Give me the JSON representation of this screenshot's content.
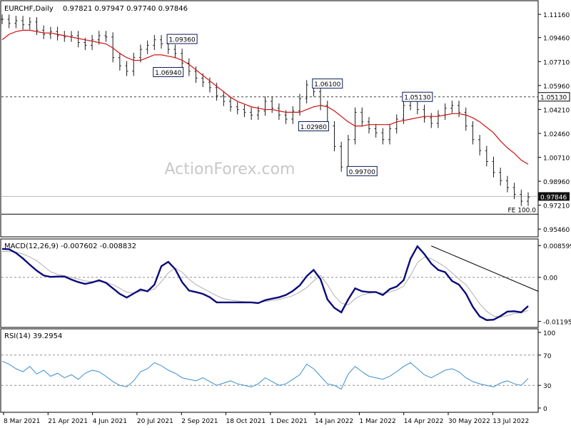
{
  "header": {
    "symbol": "EURCHF,Daily",
    "ohlc": "0.97821 0.97947 0.97740 0.97846"
  },
  "watermark": "ActionForex.com",
  "colors": {
    "price": "#1a1a1a",
    "ma": "#d01010",
    "macd": "#0a0a7a",
    "signal": "#b0b0b0",
    "rsi": "#3a8fd0",
    "grid_dash": "#404040",
    "current_price_box": "#111111"
  },
  "chart_data": [
    {
      "type": "line",
      "title": "EURCHF,Daily",
      "x_ticks": [
        "8 Mar 2021",
        "21 Apr 2021",
        "4 Jun 2021",
        "20 Jul 2021",
        "2 Sep 2021",
        "18 Oct 2021",
        "1 Dec 2021",
        "14 Jan 2022",
        "1 Mar 2022",
        "14 Apr 2022",
        "30 May 2022",
        "13 Jul 2022"
      ],
      "y_ticks": [
        "1.11160",
        "1.09460",
        "1.07710",
        "1.05960",
        "1.04210",
        "1.02460",
        "1.00710",
        "0.98960",
        "0.97210",
        "0.95460"
      ],
      "ylim": [
        0.95,
        1.12
      ],
      "series": [
        {
          "values": [
            1.108,
            1.105,
            1.107,
            1.104,
            1.106,
            1.1,
            1.097,
            1.099,
            1.096,
            1.095,
            1.096,
            1.091,
            1.089,
            1.093,
            1.096,
            1.095,
            1.08,
            1.074,
            1.07,
            1.08,
            1.086,
            1.089,
            1.093,
            1.09,
            1.086,
            1.083,
            1.076,
            1.07,
            1.065,
            1.062,
            1.058,
            1.052,
            1.048,
            1.044,
            1.042,
            1.04,
            1.038,
            1.041,
            1.048,
            1.043,
            1.038,
            1.035,
            1.041,
            1.05,
            1.06,
            1.055,
            1.045,
            1.03,
            1.015,
            1.0,
            1.02,
            1.04,
            1.033,
            1.028,
            1.025,
            1.02,
            1.028,
            1.035,
            1.045,
            1.05,
            1.042,
            1.036,
            1.032,
            1.038,
            1.043,
            1.045,
            1.04,
            1.03,
            1.02,
            1.012,
            1.004,
            0.996,
            0.99,
            0.985,
            0.98,
            0.975,
            0.978
          ]
        },
        {
          "values": [
            1.093,
            1.097,
            1.099,
            1.1,
            1.1,
            1.099,
            1.098,
            1.098,
            1.097,
            1.096,
            1.095,
            1.094,
            1.093,
            1.092,
            1.091,
            1.09,
            1.087,
            1.083,
            1.08,
            1.078,
            1.078,
            1.08,
            1.082,
            1.082,
            1.081,
            1.08,
            1.078,
            1.075,
            1.071,
            1.067,
            1.063,
            1.059,
            1.055,
            1.051,
            1.048,
            1.046,
            1.044,
            1.043,
            1.042,
            1.042,
            1.041,
            1.04,
            1.04,
            1.04,
            1.042,
            1.044,
            1.045,
            1.044,
            1.041,
            1.037,
            1.033,
            1.03,
            1.03,
            1.031,
            1.031,
            1.031,
            1.031,
            1.033,
            1.034,
            1.035,
            1.036,
            1.037,
            1.037,
            1.037,
            1.038,
            1.039,
            1.039,
            1.038,
            1.036,
            1.033,
            1.029,
            1.025,
            1.019,
            1.014,
            1.01,
            1.005,
            1.002
          ]
        }
      ],
      "annotations": [
        {
          "label": "1.09360",
          "x": 47,
          "y": 1.0936
        },
        {
          "label": "1.06940",
          "x": 45,
          "y": 1.0694
        },
        {
          "label": "1.06100",
          "x": 86,
          "y": 1.061
        },
        {
          "label": "1.02980",
          "x": 82,
          "y": 1.0298
        },
        {
          "label": "1.05130",
          "x": 111,
          "y": 1.0513
        },
        {
          "label": "0.99700",
          "x": 96,
          "y": 0.997
        },
        {
          "label": "FE 100.0",
          "x": 140,
          "y": 0.972
        }
      ],
      "levels": [
        {
          "label": "1.05130",
          "value": 1.0513
        },
        {
          "label": "0.97846",
          "value": 0.97846
        }
      ],
      "grid": false
    },
    {
      "type": "line",
      "title": "MACD(12,26,9) -0.007602 -0.008832",
      "y_ticks": [
        "0.008599",
        "0.00",
        "-0.011958"
      ],
      "ylim": [
        -0.0132,
        0.01
      ],
      "series": [
        {
          "values": [
            0.0077,
            0.0076,
            0.0066,
            0.0051,
            0.0034,
            0.0018,
            0.0005,
            0.0001,
            0.0002,
            0.0002,
            -0.0006,
            -0.0013,
            -0.0018,
            -0.0014,
            -0.0008,
            -0.0015,
            -0.003,
            -0.0045,
            -0.0055,
            -0.0044,
            -0.0033,
            -0.0038,
            -0.002,
            0.003,
            0.0042,
            0.0022,
            -0.0013,
            -0.0036,
            -0.004,
            -0.0045,
            -0.0054,
            -0.0068,
            -0.0068,
            -0.0068,
            -0.0068,
            -0.0068,
            -0.0068,
            -0.007,
            -0.0062,
            -0.0058,
            -0.0054,
            -0.0048,
            -0.0037,
            -0.0022,
            0.0003,
            0.002,
            -0.0005,
            -0.006,
            -0.0083,
            -0.0095,
            -0.006,
            -0.003,
            -0.0038,
            -0.004,
            -0.004,
            -0.0048,
            -0.0032,
            -0.0025,
            -0.0008,
            0.005,
            0.0084,
            0.0063,
            0.0037,
            0.002,
            0.0014,
            -0.001,
            -0.002,
            -0.0044,
            -0.008,
            -0.0106,
            -0.0116,
            -0.0115,
            -0.0105,
            -0.0093,
            -0.0092,
            -0.0095,
            -0.0078
          ]
        },
        {
          "values": [
            0.007,
            0.007,
            0.0068,
            0.0063,
            0.0055,
            0.0045,
            0.003,
            0.0015,
            0.0008,
            0.0004,
            0.0,
            -0.0005,
            -0.001,
            -0.0012,
            -0.0012,
            -0.0013,
            -0.002,
            -0.003,
            -0.004,
            -0.0043,
            -0.0038,
            -0.0036,
            -0.0032,
            -0.0012,
            0.0012,
            0.0025,
            0.0014,
            -0.0005,
            -0.002,
            -0.003,
            -0.004,
            -0.005,
            -0.0058,
            -0.0062,
            -0.0064,
            -0.0066,
            -0.0067,
            -0.0068,
            -0.0066,
            -0.0063,
            -0.006,
            -0.0055,
            -0.005,
            -0.004,
            -0.0028,
            -0.001,
            0.0005,
            -0.002,
            -0.005,
            -0.007,
            -0.0075,
            -0.0058,
            -0.0048,
            -0.0043,
            -0.0041,
            -0.0043,
            -0.004,
            -0.0034,
            -0.0024,
            0.0005,
            0.004,
            0.0055,
            0.005,
            0.004,
            0.0028,
            0.0012,
            -0.0005,
            -0.002,
            -0.0045,
            -0.0072,
            -0.0092,
            -0.0105,
            -0.0108,
            -0.0104,
            -0.0098,
            -0.0096,
            -0.009
          ]
        }
      ],
      "trendline": [
        {
          "x": 114,
          "y": 0.0085
        },
        {
          "x": 140,
          "y": -0.003
        }
      ]
    },
    {
      "type": "line",
      "title": "RSI(14) 39.2954",
      "y_ticks": [
        "100",
        "70",
        "30",
        "0"
      ],
      "ylim": [
        0,
        100
      ],
      "levels": [
        70,
        30
      ],
      "series": [
        {
          "values": [
            62,
            58,
            52,
            48,
            55,
            45,
            50,
            42,
            46,
            40,
            44,
            38,
            46,
            50,
            48,
            42,
            35,
            30,
            28,
            36,
            48,
            52,
            60,
            56,
            50,
            46,
            40,
            38,
            36,
            40,
            35,
            30,
            33,
            36,
            32,
            30,
            28,
            32,
            40,
            35,
            30,
            32,
            38,
            44,
            58,
            52,
            42,
            32,
            30,
            25,
            45,
            55,
            48,
            42,
            40,
            38,
            42,
            48,
            55,
            60,
            52,
            44,
            40,
            45,
            50,
            52,
            48,
            40,
            35,
            32,
            30,
            28,
            33,
            36,
            32,
            30,
            39
          ]
        }
      ]
    }
  ]
}
